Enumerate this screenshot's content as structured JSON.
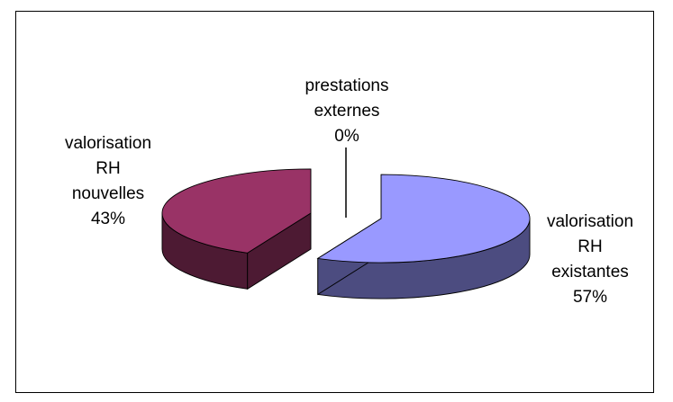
{
  "chart_data": {
    "type": "pie",
    "title": "",
    "slices": [
      {
        "name": "valorisation RH existantes",
        "value": 57,
        "label_lines": [
          "valorisation",
          "RH",
          "existantes",
          "57%"
        ],
        "top_color": "#9999ff",
        "side_color": "#4c4c80"
      },
      {
        "name": "valorisation RH nouvelles",
        "value": 43,
        "label_lines": [
          "valorisation",
          "RH",
          "nouvelles",
          "43%"
        ],
        "top_color": "#993366",
        "side_color": "#4d1a33"
      },
      {
        "name": "prestations externes",
        "value": 0,
        "label_lines": [
          "prestations",
          "externes",
          "0%"
        ],
        "top_color": "#ffffcc",
        "side_color": "#808066"
      }
    ],
    "legend": "none",
    "style": "3d-exploded"
  }
}
